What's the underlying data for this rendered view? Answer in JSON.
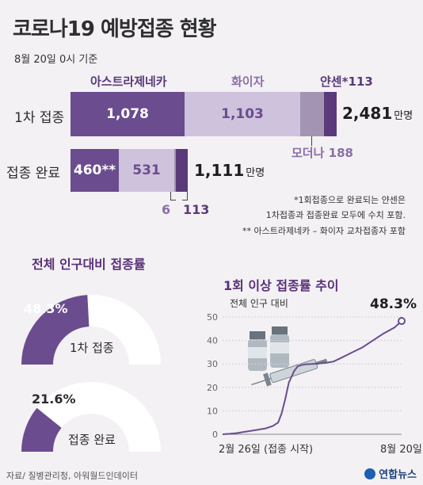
{
  "header": {
    "title": "코로나19 예방접종 현황",
    "date": "8월 20일 0시 기준"
  },
  "colors": {
    "dark_purple": "#6b4c8f",
    "mid_purple": "#8a6ea8",
    "light_purple": "#cfc2dd",
    "gray_purple": "#a394b3",
    "dark_text": "#5a2f7a",
    "gauge_empty": "#ffffff"
  },
  "vaccines": {
    "astrazeneca": "아스트라제네카",
    "pfizer": "화이자",
    "janssen": "얀센*113",
    "moderna": "모더나",
    "moderna_value": "188"
  },
  "rows": {
    "first_dose_label": "1차 접종",
    "complete_label": "접종 완료"
  },
  "chart_data": [
    {
      "type": "bar",
      "unit": "만명",
      "categories": [
        "1차 접종",
        "접종 완료"
      ],
      "series": [
        {
          "name": "아스트라제네카",
          "values": [
            1078,
            460
          ]
        },
        {
          "name": "화이자",
          "values": [
            1103,
            531
          ]
        },
        {
          "name": "모더나",
          "values": [
            188,
            6
          ]
        },
        {
          "name": "얀센",
          "values": [
            113,
            113
          ]
        }
      ],
      "totals": [
        "2,481",
        "1,111"
      ],
      "labels": {
        "first_az": "1,078",
        "first_pfizer": "1,103",
        "complete_az": "460**",
        "complete_pfizer": "531",
        "complete_moderna": "6",
        "complete_janssen": "113"
      }
    },
    {
      "type": "pie",
      "title": "전체 인구대비 접종률",
      "gauges": [
        {
          "label": "1차 접종",
          "value": 48.3,
          "value_text": "48.3%"
        },
        {
          "label": "접종 완료",
          "value": 21.6,
          "value_text": "21.6%"
        }
      ]
    },
    {
      "type": "line",
      "title": "1회 이상 접종률 추이",
      "ylabel": "전체 인구 대비",
      "ylim": [
        0,
        50
      ],
      "yticks": [
        0,
        10,
        20,
        30,
        40,
        50
      ],
      "x_start_label": "2월 26일 (접종 시작)",
      "x_end_label": "8월 20일",
      "end_value_text": "48.3%",
      "x": [
        0,
        4,
        8,
        12,
        16,
        20,
        24,
        28,
        31,
        33,
        35,
        37,
        40,
        42,
        44,
        46,
        50,
        54,
        58,
        62,
        66,
        70,
        74,
        78,
        82,
        86,
        90,
        96,
        100
      ],
      "y": [
        0,
        0.2,
        0.5,
        1.0,
        1.5,
        2.0,
        2.5,
        3.5,
        5,
        9,
        15,
        22,
        27,
        29,
        29.5,
        29.8,
        30,
        30.2,
        30.5,
        31,
        32.5,
        34,
        35.5,
        37,
        39,
        41,
        43,
        45.5,
        48.3
      ]
    }
  ],
  "notes": {
    "line1": "*1회접종으로 완료되는 얀센은",
    "line2": "1차접종과 접종완료 모두에 수치 포함.",
    "line3": "** 아스트라제네카 – 화이자 교차접종자 포함"
  },
  "footer": {
    "source": "자료/ 질병관리청, 아워월드인데이터",
    "logo": "연합뉴스"
  }
}
